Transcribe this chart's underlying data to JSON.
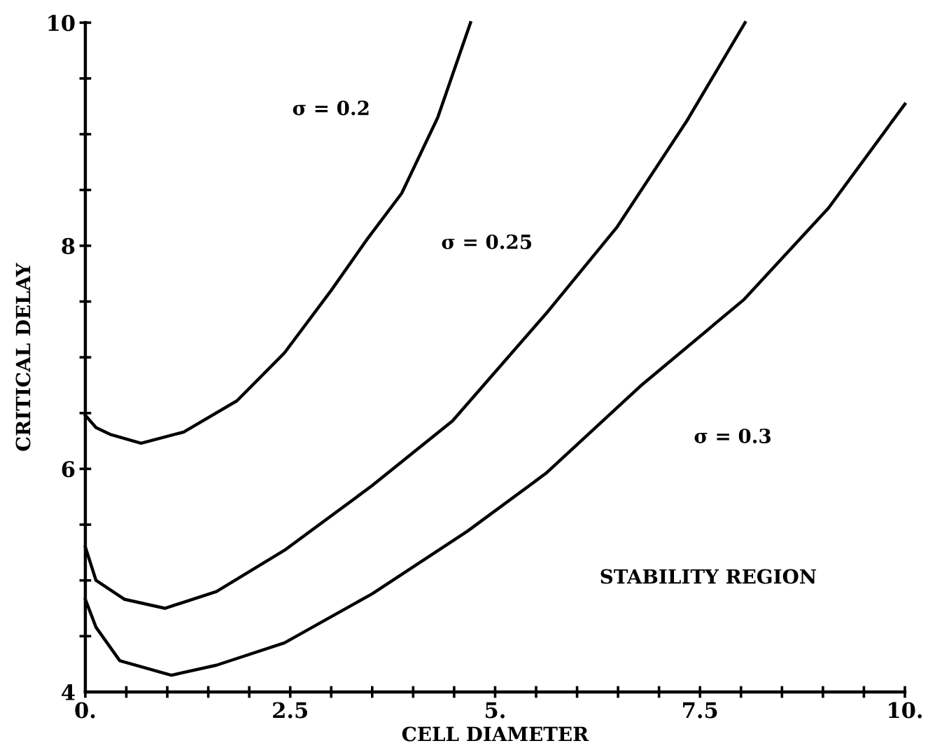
{
  "chart_data": {
    "type": "line",
    "xlabel": "CELL DIAMETER",
    "ylabel": "CRITICAL DELAY",
    "series": [
      {
        "color": "#000000",
        "x": [
          0,
          0.13,
          0.3,
          0.68,
          1.2,
          1.85,
          2.43,
          3.0,
          3.43,
          3.86,
          4.3,
          4.7
        ],
        "values": [
          6.48,
          6.37,
          6.31,
          6.23,
          6.33,
          6.61,
          7.04,
          7.6,
          8.05,
          8.47,
          9.15,
          10
        ]
      },
      {
        "color": "#000000",
        "x": [
          0,
          0.13,
          0.48,
          0.97,
          1.6,
          2.43,
          3.5,
          4.48,
          5.62,
          6.49,
          7.34,
          8.05
        ],
        "values": [
          5.3,
          5.0,
          4.83,
          4.75,
          4.9,
          5.27,
          5.85,
          6.43,
          7.39,
          8.17,
          9.12,
          10
        ]
      },
      {
        "color": "#000000",
        "x": [
          0,
          0.13,
          0.42,
          1.05,
          1.6,
          2.43,
          3.5,
          4.66,
          5.62,
          6.77,
          8.04,
          9.07,
          10
        ],
        "values": [
          4.83,
          4.58,
          4.28,
          4.15,
          4.24,
          4.44,
          4.88,
          5.44,
          5.96,
          6.74,
          7.52,
          8.34,
          9.27
        ]
      }
    ],
    "annotations": [
      "σ = 0.2",
      "σ = 0.25",
      "σ = 0.3",
      "STABILITY REGION"
    ],
    "xlim": [
      0,
      10
    ],
    "ylim": [
      4,
      10
    ],
    "xticks": [
      {
        "value": 0,
        "label": "0."
      },
      {
        "value": 0.5,
        "label": null
      },
      {
        "value": 1,
        "label": null
      },
      {
        "value": 1.5,
        "label": null
      },
      {
        "value": 2,
        "label": null
      },
      {
        "value": 2.5,
        "label": "2.5"
      },
      {
        "value": 3,
        "label": null
      },
      {
        "value": 3.5,
        "label": null
      },
      {
        "value": 4,
        "label": null
      },
      {
        "value": 4.5,
        "label": null
      },
      {
        "value": 5,
        "label": "5."
      },
      {
        "value": 5.5,
        "label": null
      },
      {
        "value": 6,
        "label": null
      },
      {
        "value": 6.5,
        "label": null
      },
      {
        "value": 7,
        "label": null
      },
      {
        "value": 7.5,
        "label": "7.5"
      },
      {
        "value": 8,
        "label": null
      },
      {
        "value": 8.5,
        "label": null
      },
      {
        "value": 9,
        "label": null
      },
      {
        "value": 9.5,
        "label": null
      },
      {
        "value": 10,
        "label": "10."
      }
    ],
    "yticks": [
      4,
      {
        "value": 4.5,
        "label": null
      },
      {
        "value": 5,
        "label": null
      },
      {
        "value": 5.5,
        "label": null
      },
      6,
      {
        "value": 6.5,
        "label": null
      },
      {
        "value": 7,
        "label": null
      },
      {
        "value": 7.5,
        "label": null
      },
      8,
      {
        "value": 8.5,
        "label": null
      },
      {
        "value": 9,
        "label": null
      },
      {
        "value": 9.5,
        "label": null
      },
      10
    ],
    "grid": false,
    "legend": false,
    "marker": "none",
    "line_style": "solid"
  }
}
